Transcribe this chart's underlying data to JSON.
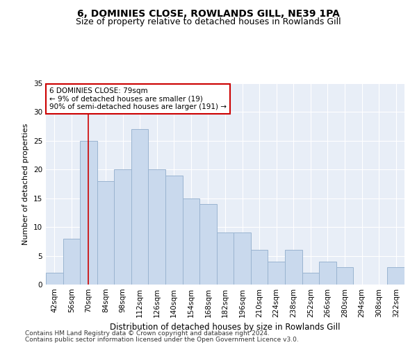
{
  "title": "6, DOMINIES CLOSE, ROWLANDS GILL, NE39 1PA",
  "subtitle": "Size of property relative to detached houses in Rowlands Gill",
  "xlabel": "Distribution of detached houses by size in Rowlands Gill",
  "ylabel": "Number of detached properties",
  "categories": [
    "42sqm",
    "56sqm",
    "70sqm",
    "84sqm",
    "98sqm",
    "112sqm",
    "126sqm",
    "140sqm",
    "154sqm",
    "168sqm",
    "182sqm",
    "196sqm",
    "210sqm",
    "224sqm",
    "238sqm",
    "252sqm",
    "266sqm",
    "280sqm",
    "294sqm",
    "308sqm",
    "322sqm"
  ],
  "values": [
    2,
    8,
    25,
    18,
    20,
    27,
    20,
    19,
    15,
    14,
    9,
    9,
    6,
    4,
    6,
    2,
    4,
    3,
    0,
    0,
    3
  ],
  "bar_color": "#c9d9ed",
  "bar_edge_color": "#9ab4d0",
  "vline_x": 2.0,
  "vline_color": "#cc0000",
  "annotation_text": "6 DOMINIES CLOSE: 79sqm\n← 9% of detached houses are smaller (19)\n90% of semi-detached houses are larger (191) →",
  "annotation_box_color": "#ffffff",
  "annotation_box_edge": "#cc0000",
  "ylim": [
    0,
    35
  ],
  "yticks": [
    0,
    5,
    10,
    15,
    20,
    25,
    30,
    35
  ],
  "background_color": "#e8eef7",
  "grid_color": "#ffffff",
  "footer1": "Contains HM Land Registry data © Crown copyright and database right 2024.",
  "footer2": "Contains public sector information licensed under the Open Government Licence v3.0.",
  "title_fontsize": 10,
  "subtitle_fontsize": 9,
  "xlabel_fontsize": 8.5,
  "ylabel_fontsize": 8,
  "tick_fontsize": 7.5,
  "annotation_fontsize": 7.5,
  "footer_fontsize": 6.5
}
